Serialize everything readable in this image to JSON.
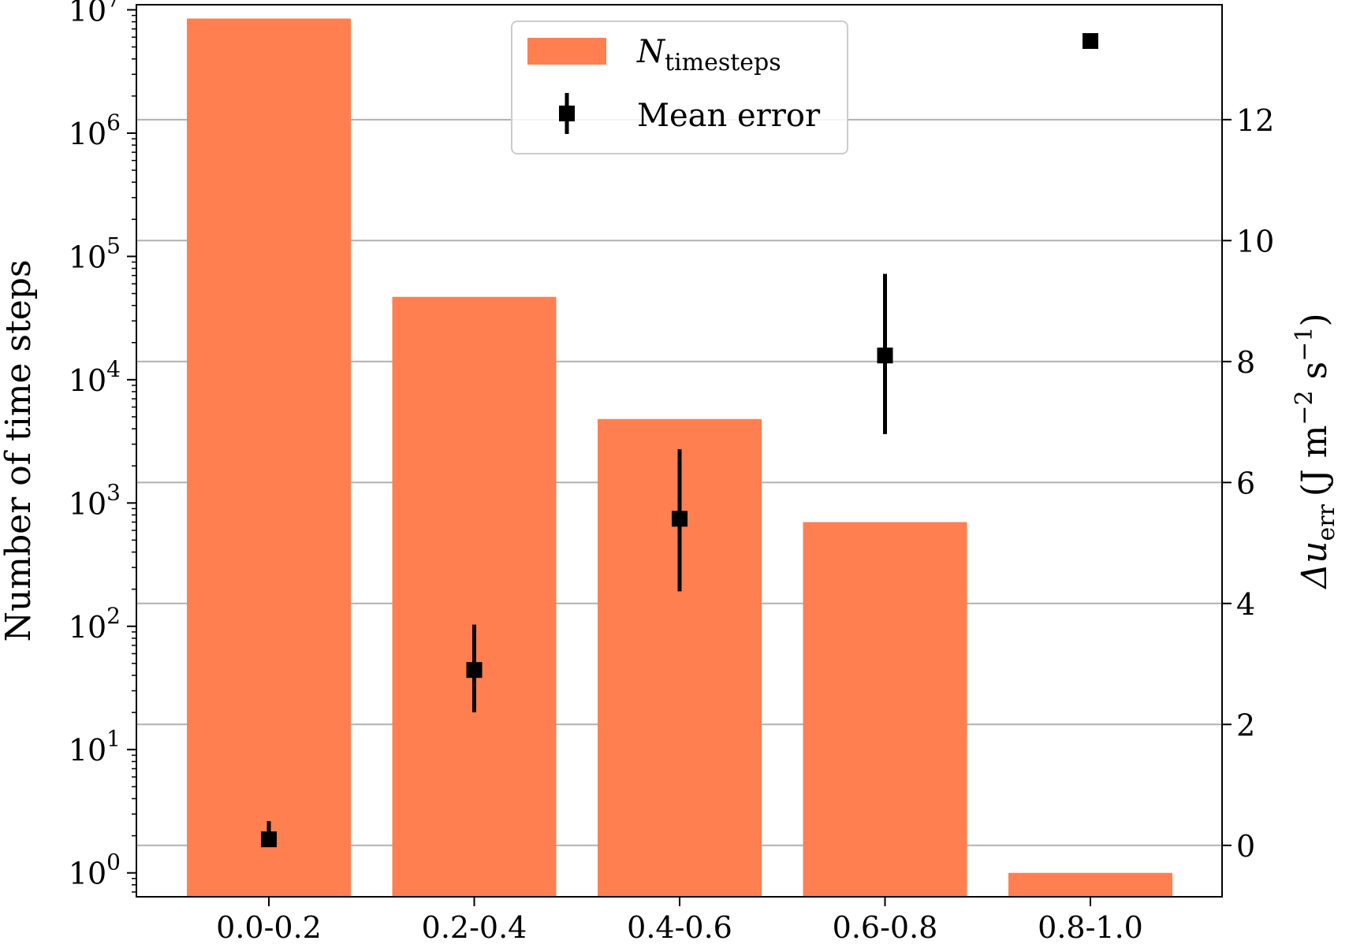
{
  "chart_data": {
    "type": "bar",
    "categories": [
      "0.0-0.2",
      "0.2-0.4",
      "0.4-0.6",
      "0.6-0.8",
      "0.8-1.0"
    ],
    "y_left": {
      "label": "Number of time steps",
      "scale": "log",
      "range": [
        0.64,
        11000000
      ],
      "ticks": [
        {
          "value": 1,
          "base": "10",
          "exp": "0"
        },
        {
          "value": 10,
          "base": "10",
          "exp": "1"
        },
        {
          "value": 100,
          "base": "10",
          "exp": "2"
        },
        {
          "value": 1000,
          "base": "10",
          "exp": "3"
        },
        {
          "value": 10000,
          "base": "10",
          "exp": "4"
        },
        {
          "value": 100000,
          "base": "10",
          "exp": "5"
        },
        {
          "value": 1000000,
          "base": "10",
          "exp": "6"
        },
        {
          "value": 10000000,
          "base": "10",
          "exp": "7"
        }
      ]
    },
    "y_right": {
      "label_prefix": "Δu",
      "label_sub": "err",
      "label_units": "(J m",
      "label_exp1": "−2",
      "label_mid": " s",
      "label_exp2": "−1",
      "label_close": ")",
      "scale": "linear",
      "range": [
        -0.85,
        13.9
      ],
      "ticks": [
        0,
        2,
        4,
        6,
        8,
        10,
        12
      ],
      "grid": true
    },
    "series": [
      {
        "name_main": "N",
        "name_sub": "timesteps",
        "type": "bar",
        "axis": "left",
        "color": "#ff7f50",
        "values": [
          8500000,
          47000,
          4800,
          700,
          1
        ]
      },
      {
        "name": "Mean error",
        "type": "errorbar",
        "axis": "right",
        "color": "#000000",
        "values": [
          0.1,
          2.9,
          5.4,
          8.1,
          13.3
        ],
        "err_low": [
          0.1,
          2.2,
          4.2,
          6.8,
          13.3
        ],
        "err_high": [
          0.4,
          3.65,
          6.55,
          9.45,
          13.3
        ]
      }
    ],
    "legend": {
      "position": "upper-center"
    }
  }
}
